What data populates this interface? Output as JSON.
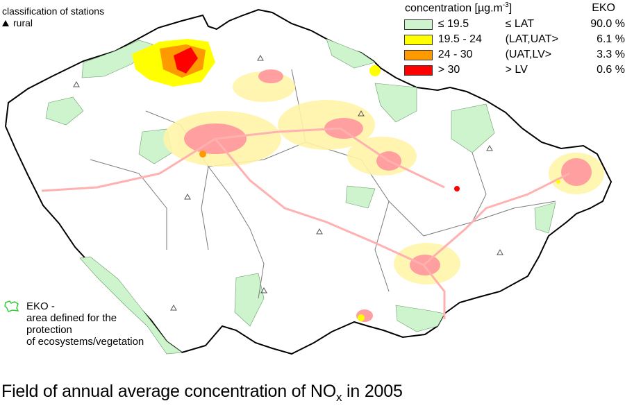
{
  "station_classification": {
    "heading": "classification of stations",
    "rural_label": "rural",
    "rural_icon": "triangle-icon"
  },
  "legend": {
    "concentration_header": "concentration [µg.m",
    "concentration_unit_exp": "-3",
    "concentration_unit_close": "]",
    "eko_header": "EKO",
    "rows": [
      {
        "range": "≤ 19.5",
        "class": "≤ LAT",
        "percent": "90.0 %",
        "color": "#cdf4cd"
      },
      {
        "range": "19.5 - 24",
        "class": "(LAT,UAT>",
        "percent": "6.1 %",
        "color": "#ffff00"
      },
      {
        "range": "24 - 30",
        "class": "(UAT,LV>",
        "percent": "3.3 %",
        "color": "#ff9900"
      },
      {
        "range": "> 30",
        "class": "> LV",
        "percent": "0.6 %",
        "color": "#ff0000"
      }
    ]
  },
  "eko_note": {
    "line1": "EKO -",
    "line2": "area defined for the",
    "line3": "protection",
    "line4": "of ecosystems/vegetation",
    "icon": "eko-area-outline-icon",
    "outline_color": "#33cc33"
  },
  "title": {
    "main": "Field of annual average concentration of NO",
    "sub": "x",
    "tail": " in 2005"
  },
  "colors": {
    "eko_fill": "#cdf4cd",
    "urban_pink": "#ff9999",
    "light_yellow": "#fff5a8",
    "border": "#000000",
    "region_border": "#777777"
  }
}
